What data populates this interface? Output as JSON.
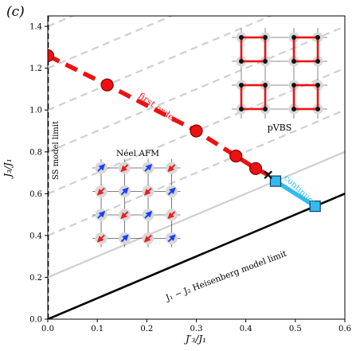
{
  "panel_label": "(c)",
  "chart_data": {
    "type": "line",
    "xlabel": "J′₃/J₁",
    "ylabel": "J₃/J₁",
    "xlim": [
      0,
      0.6
    ],
    "ylim": [
      0,
      1.45
    ],
    "xticks": [
      0.0,
      0.1,
      0.2,
      0.3,
      0.4,
      0.5,
      0.6
    ],
    "yticks": [
      0.0,
      0.2,
      0.4,
      0.6,
      0.8,
      1.0,
      1.2,
      1.4
    ],
    "xtick_labels": [
      "0.0",
      "0.1",
      "0.2",
      "0.3",
      "0.4",
      "0.5",
      "0.6"
    ],
    "ytick_labels": [
      "0.0",
      "0.2",
      "0.4",
      "0.6",
      "0.8",
      "1.0",
      "1.2",
      "1.4"
    ],
    "series": [
      {
        "name": "first order",
        "style": "dashed",
        "color": "#ee1111",
        "marker": "circle",
        "x": [
          0.0,
          0.12,
          0.3,
          0.38,
          0.42
        ],
        "y": [
          1.26,
          1.12,
          0.9,
          0.78,
          0.72
        ],
        "line_end": [
          0.445,
          0.69
        ]
      },
      {
        "name": "continuous",
        "style": "solid",
        "color": "#33bbee",
        "marker": "square",
        "x": [
          0.46,
          0.54
        ],
        "y": [
          0.66,
          0.54
        ]
      }
    ],
    "multicritical_point": {
      "x": 0.445,
      "y": 0.69,
      "marker": "x",
      "color": "#111111"
    },
    "limits": [
      {
        "name": "SS model limit",
        "x": [
          0.0,
          0.0
        ],
        "y": [
          0.0,
          1.45
        ],
        "style": "dashed",
        "color": "#000000"
      },
      {
        "name": "J₁ − J₂ Heisenberg model limit",
        "x": [
          0.0,
          0.6
        ],
        "y": [
          0.0,
          0.6
        ],
        "style": "solid",
        "color": "#000000"
      }
    ],
    "guide_lines": {
      "slope": 1,
      "solid_intercepts": [
        0.2
      ],
      "dashed_intercepts": [
        0.4,
        0.6,
        0.8,
        1.0,
        1.2,
        1.4
      ],
      "color": "#cfcfcf"
    },
    "annotations": [
      {
        "text": "first order",
        "color": "#ee1111"
      },
      {
        "text": "continuous",
        "color": "#33bbee"
      },
      {
        "text": "SS model limit",
        "color": "#000000"
      },
      {
        "text": "J₁ − J₂ Heisenberg model limit",
        "color": "#000000"
      },
      {
        "text": "Néel AFM",
        "color": "#000000"
      },
      {
        "text": "pVBS",
        "color": "#000000"
      }
    ]
  },
  "insets": {
    "neel_title": "Néel AFM",
    "pvbs_title": "pVBS",
    "neel_spins": [
      [
        "up",
        "down",
        "up",
        "down"
      ],
      [
        "down",
        "up",
        "down",
        "up"
      ],
      [
        "up",
        "down",
        "up",
        "down"
      ],
      [
        "down",
        "up",
        "down",
        "up"
      ]
    ],
    "colors": {
      "up": "#1f3fff",
      "down": "#e82020",
      "bond": "#ee1111",
      "site": "#111111",
      "halo": "#d8d8d8"
    }
  }
}
